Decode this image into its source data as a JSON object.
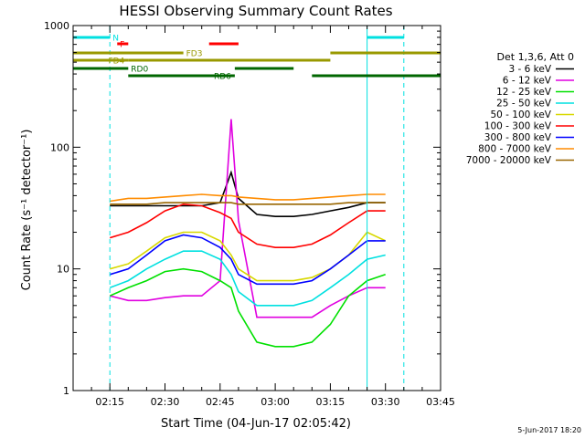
{
  "chart_data": {
    "type": "line",
    "title": "HESSI Observing Summary Count Rates",
    "xlabel": "Start Time (04-Jun-17 02:05:42)",
    "ylabel": "Count Rate (s⁻¹ detector⁻¹)",
    "yscale": "log",
    "ylim": [
      1,
      1000
    ],
    "xlim": [
      "02:05",
      "03:45"
    ],
    "x_ticks": [
      "02:15",
      "02:30",
      "02:45",
      "03:00",
      "03:15",
      "03:30",
      "03:45"
    ],
    "y_ticks": [
      "1",
      "10",
      "100",
      "1000"
    ],
    "legend_title": "Det 1,3,6, Att 0",
    "legend_position": "right",
    "footer_date": "5-Jun-2017 18:20",
    "x": [
      "02:10",
      "02:15",
      "02:20",
      "02:25",
      "02:30",
      "02:35",
      "02:40",
      "02:45",
      "02:48",
      "02:50",
      "02:55",
      "03:00",
      "03:05",
      "03:10",
      "03:15",
      "03:20",
      "03:25",
      "03:30"
    ],
    "series": [
      {
        "name": "3 - 6 keV",
        "color": "#000000",
        "values": [
          null,
          33,
          33,
          33,
          33,
          33,
          33,
          35,
          62,
          38,
          28,
          27,
          27,
          28,
          30,
          32,
          35,
          35
        ]
      },
      {
        "name": "6 - 12 keV",
        "color": "#e000e0",
        "values": [
          null,
          6,
          5.5,
          5.5,
          5.8,
          6,
          6,
          8,
          170,
          25,
          4,
          4,
          4,
          4,
          5,
          6,
          7,
          7
        ]
      },
      {
        "name": "12 - 25 keV",
        "color": "#00e000",
        "values": [
          null,
          6,
          7,
          8,
          9.5,
          10,
          9.5,
          8,
          7,
          4.5,
          2.5,
          2.3,
          2.3,
          2.5,
          3.5,
          6,
          8,
          9
        ]
      },
      {
        "name": "25 - 50 keV",
        "color": "#00e0e0",
        "values": [
          null,
          7,
          8,
          10,
          12,
          14,
          14,
          12,
          9,
          6.5,
          5,
          5,
          5,
          5.5,
          7,
          9,
          12,
          13
        ]
      },
      {
        "name": "50 - 100 keV",
        "color": "#d8d800",
        "values": [
          null,
          10,
          11,
          14,
          18,
          20,
          20,
          17,
          13,
          10,
          8,
          8,
          8,
          8.5,
          10,
          13,
          20,
          17
        ]
      },
      {
        "name": "100 - 300 keV",
        "color": "#ff0000",
        "values": [
          null,
          18,
          20,
          24,
          30,
          34,
          33,
          29,
          26,
          20,
          16,
          15,
          15,
          16,
          19,
          24,
          30,
          30
        ]
      },
      {
        "name": "300 - 800 keV",
        "color": "#0000ff",
        "values": [
          null,
          9,
          10,
          13,
          17,
          19,
          18,
          15,
          12,
          9,
          7.5,
          7.5,
          7.5,
          8,
          10,
          13,
          17,
          17
        ]
      },
      {
        "name": "800 - 7000 keV",
        "color": "#ff8c00",
        "values": [
          null,
          36,
          38,
          38,
          39,
          40,
          41,
          40,
          40,
          39,
          38,
          37,
          37,
          38,
          39,
          40,
          41,
          41
        ]
      },
      {
        "name": "7000 - 20000 keV",
        "color": "#996600",
        "values": [
          null,
          34,
          34,
          34,
          35,
          35,
          35,
          35,
          35,
          34,
          34,
          34,
          34,
          34,
          34,
          35,
          35,
          35
        ]
      }
    ],
    "annotations": [
      {
        "label": "N",
        "color": "#00e0e0",
        "intervals": [
          [
            "02:05",
            "02:15"
          ],
          [
            "03:25",
            "03:35"
          ]
        ]
      },
      {
        "label": "F",
        "color": "#ff0000",
        "intervals": [
          [
            "02:17",
            "02:20"
          ],
          [
            "02:42",
            "02:50"
          ]
        ]
      },
      {
        "label": "FD3",
        "color": "#999900",
        "intervals": [
          [
            "02:05",
            "02:35"
          ],
          [
            "03:15",
            "03:45"
          ]
        ]
      },
      {
        "label": "FD4",
        "color": "#999900",
        "intervals": [
          [
            "02:05",
            "02:20"
          ],
          [
            "02:20",
            "03:15"
          ]
        ]
      },
      {
        "label": "RD0",
        "color": "#006600",
        "intervals": [
          [
            "02:05",
            "02:20"
          ],
          [
            "02:49",
            "03:05"
          ]
        ]
      },
      {
        "label": "RD6",
        "color": "#006600",
        "intervals": [
          [
            "02:20",
            "02:49"
          ],
          [
            "03:10",
            "03:45"
          ]
        ]
      }
    ],
    "vertical_lines": [
      {
        "time": "02:05",
        "style": "solid",
        "color": "#00e0e0"
      },
      {
        "time": "02:15",
        "style": "dashed",
        "color": "#00e0e0"
      },
      {
        "time": "03:25",
        "style": "solid",
        "color": "#00e0e0"
      },
      {
        "time": "03:35",
        "style": "dashed",
        "color": "#00e0e0"
      }
    ]
  }
}
